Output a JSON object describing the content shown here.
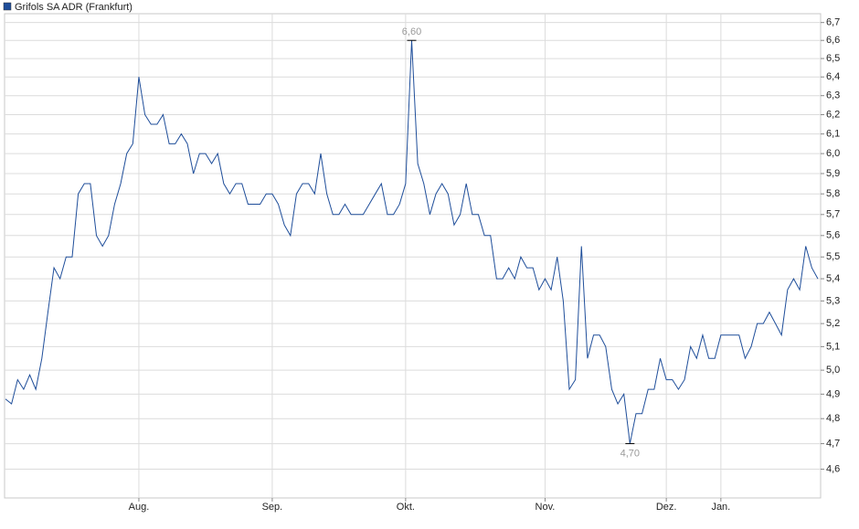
{
  "chart_data": {
    "type": "line",
    "log_scale": true,
    "grid": true,
    "legend": "top-left",
    "series": [
      {
        "name": "Grifols SA ADR (Frankfurt)",
        "color": "#1f4e9a",
        "values": [
          4.88,
          4.86,
          4.96,
          4.92,
          4.98,
          4.92,
          5.05,
          5.25,
          5.45,
          5.4,
          5.5,
          5.5,
          5.8,
          5.85,
          5.85,
          5.6,
          5.55,
          5.6,
          5.75,
          5.85,
          6.0,
          6.05,
          6.4,
          6.2,
          6.15,
          6.15,
          6.2,
          6.05,
          6.05,
          6.1,
          6.05,
          5.9,
          6.0,
          6.0,
          5.95,
          6.0,
          5.85,
          5.8,
          5.85,
          5.85,
          5.75,
          5.75,
          5.75,
          5.8,
          5.8,
          5.75,
          5.65,
          5.6,
          5.8,
          5.85,
          5.85,
          5.8,
          6.0,
          5.8,
          5.7,
          5.7,
          5.75,
          5.7,
          5.7,
          5.7,
          5.75,
          5.8,
          5.85,
          5.7,
          5.7,
          5.75,
          5.85,
          6.6,
          5.95,
          5.85,
          5.7,
          5.8,
          5.85,
          5.8,
          5.65,
          5.7,
          5.85,
          5.7,
          5.7,
          5.6,
          5.6,
          5.4,
          5.4,
          5.45,
          5.4,
          5.5,
          5.45,
          5.45,
          5.35,
          5.4,
          5.35,
          5.5,
          5.3,
          4.92,
          4.96,
          5.55,
          5.05,
          5.15,
          5.15,
          5.1,
          4.92,
          4.86,
          4.9,
          4.7,
          4.82,
          4.82,
          4.92,
          4.92,
          5.05,
          4.96,
          4.96,
          4.92,
          4.96,
          5.1,
          5.05,
          5.15,
          5.05,
          5.05,
          5.15,
          5.15,
          5.15,
          5.15,
          5.05,
          5.1,
          5.2,
          5.2,
          5.25,
          5.2,
          5.15,
          5.35,
          5.4,
          5.35,
          5.55,
          5.45,
          5.4
        ],
        "value_labels": [
          null,
          null,
          null,
          null,
          null,
          null,
          null,
          null,
          null,
          null,
          null,
          null,
          null,
          null,
          null,
          null,
          null,
          null,
          null,
          null,
          null,
          null,
          null,
          null,
          null,
          null,
          null,
          null,
          null,
          null,
          null,
          null,
          null,
          null,
          null,
          null,
          null,
          null,
          null,
          null,
          null,
          null,
          null,
          null,
          null,
          null,
          null,
          null,
          null,
          null,
          null,
          null,
          null,
          null,
          null,
          null,
          null,
          null,
          null,
          null,
          null,
          null,
          null,
          null,
          null,
          null,
          null,
          "6,60",
          null,
          null,
          null,
          null,
          null,
          null,
          null,
          null,
          null,
          null,
          null,
          null,
          null,
          null,
          null,
          null,
          null,
          null,
          null,
          null,
          null,
          null,
          null,
          null,
          null,
          null,
          null,
          null,
          null,
          null,
          null,
          null,
          null,
          null,
          null,
          "4,70",
          null,
          null,
          null,
          null,
          null,
          null,
          null,
          null,
          null,
          null,
          null,
          null,
          null,
          null,
          null,
          null,
          null,
          null,
          null,
          null,
          null,
          null,
          null,
          null,
          null,
          null,
          null,
          null,
          null,
          null,
          null
        ]
      }
    ],
    "categories": [
      null,
      null,
      null,
      null,
      null,
      null,
      null,
      null,
      null,
      null,
      null,
      null,
      null,
      null,
      null,
      null,
      null,
      null,
      null,
      null,
      null,
      null,
      "Aug.",
      null,
      null,
      null,
      null,
      null,
      null,
      null,
      null,
      null,
      null,
      null,
      null,
      null,
      null,
      null,
      null,
      null,
      null,
      null,
      null,
      null,
      "Sep.",
      null,
      null,
      null,
      null,
      null,
      null,
      null,
      null,
      null,
      null,
      null,
      null,
      null,
      null,
      null,
      null,
      null,
      null,
      null,
      null,
      null,
      "Okt.",
      null,
      null,
      null,
      null,
      null,
      null,
      null,
      null,
      null,
      null,
      null,
      null,
      null,
      null,
      null,
      null,
      null,
      null,
      null,
      null,
      null,
      null,
      "Nov.",
      null,
      null,
      null,
      null,
      null,
      null,
      null,
      null,
      null,
      null,
      null,
      null,
      null,
      null,
      null,
      null,
      null,
      null,
      null,
      "Dez.",
      null,
      null,
      null,
      null,
      null,
      null,
      null,
      null,
      "Jan.",
      null,
      null,
      null,
      null,
      null,
      null,
      null,
      null,
      null,
      null,
      null,
      null,
      null,
      null,
      null,
      null
    ],
    "ylim": [
      4.49,
      6.75
    ],
    "yticks": [
      {
        "value": 4.6,
        "label": "4,6"
      },
      {
        "value": 4.7,
        "label": "4,7"
      },
      {
        "value": 4.8,
        "label": "4,8"
      },
      {
        "value": 4.9,
        "label": "4,9"
      },
      {
        "value": 5.0,
        "label": "5,0"
      },
      {
        "value": 5.1,
        "label": "5,1"
      },
      {
        "value": 5.2,
        "label": "5,2"
      },
      {
        "value": 5.3,
        "label": "5,3"
      },
      {
        "value": 5.4,
        "label": "5,4"
      },
      {
        "value": 5.5,
        "label": "5,5"
      },
      {
        "value": 5.6,
        "label": "5,6"
      },
      {
        "value": 5.7,
        "label": "5,7"
      },
      {
        "value": 5.8,
        "label": "5,8"
      },
      {
        "value": 5.9,
        "label": "5,9"
      },
      {
        "value": 6.0,
        "label": "6,0"
      },
      {
        "value": 6.1,
        "label": "6,1"
      },
      {
        "value": 6.2,
        "label": "6,2"
      },
      {
        "value": 6.3,
        "label": "6,3"
      },
      {
        "value": 6.4,
        "label": "6,4"
      },
      {
        "value": 6.5,
        "label": "6,5"
      },
      {
        "value": 6.6,
        "label": "6,6"
      },
      {
        "value": 6.7,
        "label": "6,7"
      }
    ]
  }
}
